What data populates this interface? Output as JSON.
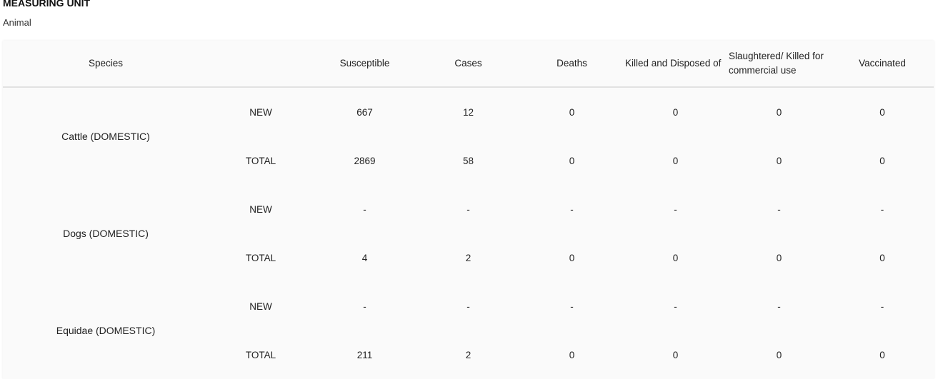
{
  "measuring_unit": {
    "label": "MEASURING UNIT",
    "value": "Animal"
  },
  "table": {
    "headers": [
      "Species",
      "",
      "Susceptible",
      "Cases",
      "Deaths",
      "Killed and Disposed of",
      "Slaughtered/ Killed for commercial use",
      "Vaccinated"
    ],
    "groups": [
      {
        "species": "Cattle (DOMESTIC)",
        "rows": [
          [
            "NEW",
            "667",
            "12",
            "0",
            "0",
            "0",
            "0"
          ],
          [
            "TOTAL",
            "2869",
            "58",
            "0",
            "0",
            "0",
            "0"
          ]
        ]
      },
      {
        "species": "Dogs (DOMESTIC)",
        "rows": [
          [
            "NEW",
            "-",
            "-",
            "-",
            "-",
            "-",
            "-"
          ],
          [
            "TOTAL",
            "4",
            "2",
            "0",
            "0",
            "0",
            "0"
          ]
        ]
      },
      {
        "species": "Equidae (DOMESTIC)",
        "rows": [
          [
            "NEW",
            "-",
            "-",
            "-",
            "-",
            "-",
            "-"
          ],
          [
            "TOTAL",
            "211",
            "2",
            "0",
            "0",
            "0",
            "0"
          ]
        ]
      }
    ]
  }
}
